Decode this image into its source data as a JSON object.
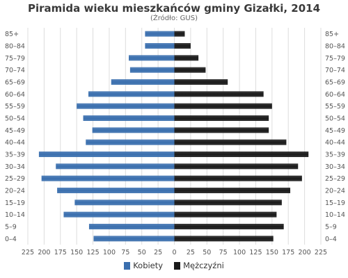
{
  "chart_data": {
    "type": "bar",
    "orientation": "horizontal",
    "title": "Piramida wieku mieszkańców gminy Gizałki, 2014",
    "subtitle": "(Źródło: GUS)",
    "categories": [
      "85+",
      "80-84",
      "75-79",
      "70-74",
      "65-69",
      "60-64",
      "55-59",
      "50-54",
      "45-49",
      "40-44",
      "35-39",
      "30-34",
      "25-29",
      "20-24",
      "15-19",
      "10-14",
      "5-9",
      "0-4"
    ],
    "series": [
      {
        "name": "Kobiety",
        "color": "#3a6fae",
        "values": [
          45,
          45,
          70,
          68,
          97,
          132,
          150,
          140,
          126,
          136,
          208,
          182,
          204,
          180,
          153,
          170,
          131,
          124
        ]
      },
      {
        "name": "Mężczyźni",
        "color": "#1a1a1a",
        "values": [
          16,
          25,
          37,
          48,
          82,
          137,
          150,
          145,
          145,
          172,
          206,
          190,
          196,
          178,
          165,
          157,
          168,
          152
        ]
      }
    ],
    "x_ticks": [
      225,
      200,
      175,
      150,
      125,
      100,
      75,
      50,
      25,
      0,
      25,
      50,
      75,
      100,
      125,
      150,
      175,
      200,
      225
    ],
    "xlim": [
      -225,
      225
    ],
    "grid": true,
    "legend_position": "bottom"
  }
}
